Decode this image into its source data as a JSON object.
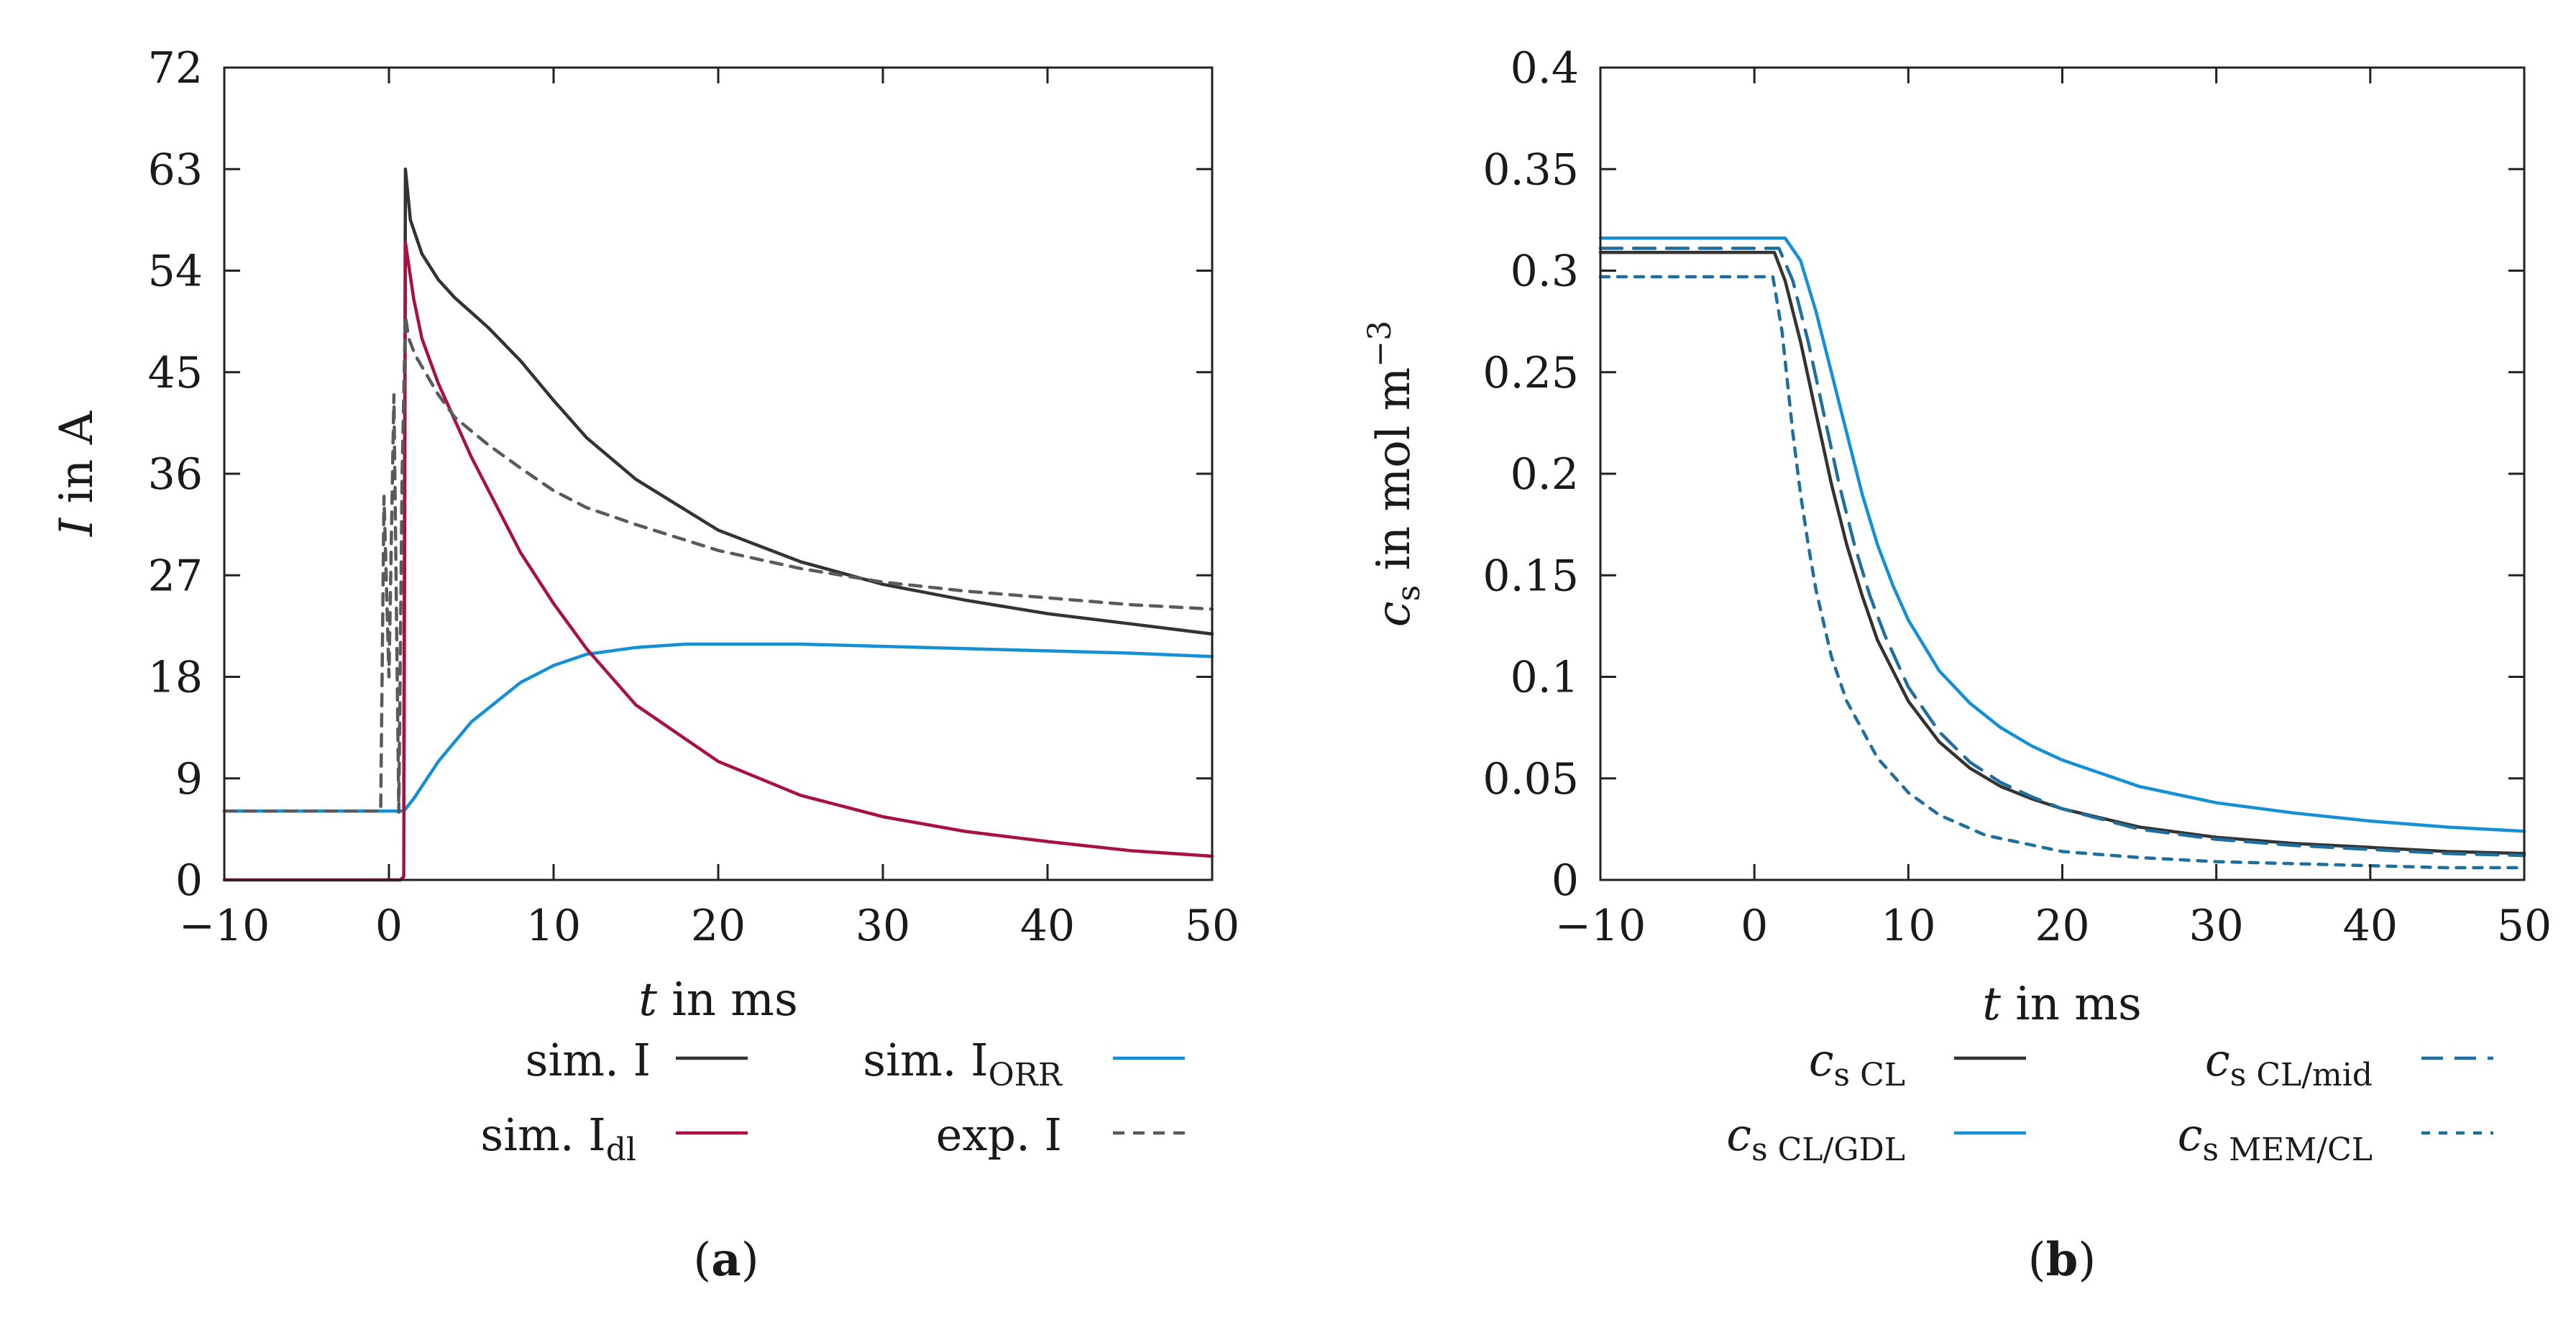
{
  "colors": {
    "dark": "#333333",
    "crimson": "#a8123e",
    "blue": "#1590d4",
    "grey": "#5a5a5a",
    "teal": "#1e6f9e"
  },
  "chart_data": [
    {
      "id": "a",
      "panel_label": "(a)",
      "type": "line",
      "xlabel": "t in ms",
      "ylabel": "I in A",
      "xlim": [
        -10,
        50
      ],
      "ylim": [
        0,
        72
      ],
      "xticks": [
        -10,
        0,
        10,
        20,
        30,
        40,
        50
      ],
      "yticks": [
        0,
        9,
        18,
        27,
        36,
        45,
        54,
        63,
        72
      ],
      "xtick_labels": [
        "−10",
        "0",
        "10",
        "20",
        "30",
        "40",
        "50"
      ],
      "ytick_labels": [
        "0",
        "9",
        "18",
        "27",
        "36",
        "45",
        "54",
        "63",
        "72"
      ],
      "series": [
        {
          "name": "sim. I",
          "legend_main": "sim. I",
          "legend_sub": "",
          "color": "#333333",
          "dash": "",
          "x": [
            -10,
            0.9,
            1.0,
            1.3,
            2,
            3,
            4,
            5,
            6,
            8,
            10,
            12,
            15,
            20,
            25,
            30,
            35,
            40,
            45,
            50
          ],
          "y": [
            6.1,
            6.1,
            63,
            58.5,
            55.5,
            53.2,
            51.6,
            50.3,
            49.0,
            46.0,
            42.5,
            39.2,
            35.5,
            31.0,
            28.2,
            26.2,
            24.8,
            23.6,
            22.7,
            21.8
          ]
        },
        {
          "name": "sim. I_ORR",
          "legend_main": "sim. I",
          "legend_sub": "ORR",
          "color": "#1590d4",
          "dash": "",
          "x": [
            -10,
            0.9,
            1.5,
            3,
            5,
            8,
            10,
            12,
            15,
            18,
            20,
            25,
            30,
            35,
            40,
            45,
            50
          ],
          "y": [
            6.1,
            6.1,
            7.2,
            10.5,
            14.0,
            17.5,
            19.0,
            20.0,
            20.6,
            20.9,
            20.9,
            20.9,
            20.7,
            20.5,
            20.3,
            20.1,
            19.8
          ]
        },
        {
          "name": "sim. I_dl",
          "legend_main": "sim. I",
          "legend_sub": "dl",
          "color": "#a8123e",
          "dash": "",
          "x": [
            -10,
            0.7,
            0.9,
            1.0,
            1.5,
            2,
            3,
            5,
            8,
            10,
            12,
            15,
            20,
            25,
            30,
            35,
            40,
            45,
            50
          ],
          "y": [
            0,
            0,
            0.3,
            56.5,
            51.5,
            48.0,
            44.0,
            37.5,
            29.0,
            24.5,
            20.5,
            15.5,
            10.5,
            7.5,
            5.6,
            4.3,
            3.4,
            2.6,
            2.1
          ]
        },
        {
          "name": "exp. I",
          "legend_main": "exp. I",
          "legend_sub": "",
          "color": "#5a5a5a",
          "dash": "16 12",
          "x": [
            -10,
            -0.5,
            -0.3,
            0,
            0.3,
            0.6,
            0.8,
            1.0,
            1.2,
            1.6,
            2,
            3,
            4,
            5,
            6,
            8,
            10,
            12,
            15,
            20,
            25,
            30,
            35,
            40,
            45,
            50
          ],
          "y": [
            6.1,
            6.1,
            34,
            18,
            43,
            6,
            36,
            50,
            48,
            46.5,
            45.5,
            43.0,
            41.0,
            39.8,
            38.6,
            36.5,
            34.5,
            33.0,
            31.5,
            29.2,
            27.6,
            26.4,
            25.6,
            25.0,
            24.4,
            24.0
          ]
        }
      ]
    },
    {
      "id": "b",
      "panel_label": "(b)",
      "type": "line",
      "xlabel": "t in ms",
      "ylabel": "c_s in mol m^−3",
      "xlim": [
        -10,
        50
      ],
      "ylim": [
        0,
        0.4
      ],
      "xticks": [
        -10,
        0,
        10,
        20,
        30,
        40,
        50
      ],
      "yticks": [
        0,
        0.05,
        0.1,
        0.15,
        0.2,
        0.25,
        0.3,
        0.35,
        0.4
      ],
      "xtick_labels": [
        "−10",
        "0",
        "10",
        "20",
        "30",
        "40",
        "50"
      ],
      "ytick_labels": [
        "0",
        "0.05",
        "0.1",
        "0.15",
        "0.2",
        "0.25",
        "0.3",
        "0.35",
        "0.4"
      ],
      "series": [
        {
          "name": "c_s CL",
          "legend_main": "c",
          "legend_sub": "s CL",
          "color": "#333333",
          "dash": "",
          "x": [
            -10,
            1.3,
            2,
            3,
            4,
            5,
            6,
            7,
            8,
            10,
            12,
            14,
            16,
            18,
            20,
            25,
            30,
            35,
            40,
            45,
            50
          ],
          "y": [
            0.309,
            0.309,
            0.295,
            0.265,
            0.23,
            0.195,
            0.165,
            0.14,
            0.118,
            0.088,
            0.068,
            0.055,
            0.046,
            0.04,
            0.035,
            0.026,
            0.021,
            0.018,
            0.016,
            0.014,
            0.013
          ]
        },
        {
          "name": "c_s CL/mid",
          "legend_main": "c",
          "legend_sub": "s CL/mid",
          "color": "#1e6f9e",
          "dash": "30 16",
          "x": [
            -10,
            1.6,
            2.5,
            3.5,
            4.5,
            5.5,
            6.5,
            7.5,
            8.5,
            10,
            12,
            14,
            16,
            18,
            20,
            25,
            30,
            35,
            40,
            45,
            50
          ],
          "y": [
            0.311,
            0.311,
            0.295,
            0.265,
            0.23,
            0.195,
            0.165,
            0.14,
            0.12,
            0.095,
            0.073,
            0.058,
            0.048,
            0.041,
            0.035,
            0.025,
            0.02,
            0.017,
            0.015,
            0.013,
            0.012
          ]
        },
        {
          "name": "c_s CL/GDL",
          "legend_main": "c",
          "legend_sub": "s CL/GDL",
          "color": "#1590d4",
          "dash": "",
          "x": [
            -10,
            2,
            3,
            4,
            5,
            6,
            7,
            8,
            9,
            10,
            12,
            14,
            16,
            18,
            20,
            25,
            30,
            35,
            40,
            45,
            50
          ],
          "y": [
            0.316,
            0.316,
            0.305,
            0.28,
            0.25,
            0.22,
            0.19,
            0.165,
            0.145,
            0.128,
            0.103,
            0.087,
            0.075,
            0.066,
            0.059,
            0.046,
            0.038,
            0.033,
            0.029,
            0.026,
            0.024
          ]
        },
        {
          "name": "c_s MEM/CL",
          "legend_main": "c",
          "legend_sub": "s MEM/CL",
          "color": "#1e6f9e",
          "dash": "12 12",
          "x": [
            -10,
            1.2,
            1.8,
            2.5,
            3,
            3.5,
            4,
            5,
            6,
            8,
            10,
            12,
            15,
            20,
            25,
            30,
            35,
            40,
            45,
            50
          ],
          "y": [
            0.297,
            0.297,
            0.27,
            0.22,
            0.19,
            0.165,
            0.143,
            0.11,
            0.088,
            0.06,
            0.043,
            0.032,
            0.022,
            0.014,
            0.011,
            0.009,
            0.008,
            0.007,
            0.006,
            0.006
          ]
        }
      ]
    }
  ]
}
